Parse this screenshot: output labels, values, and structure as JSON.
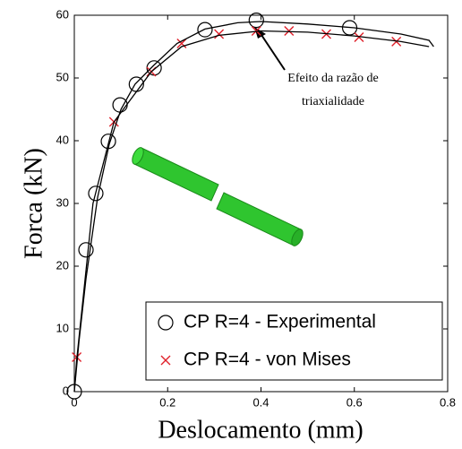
{
  "chart_data": {
    "type": "line",
    "xlabel": "Deslocamento (mm)",
    "ylabel": "Forca (kN)",
    "xlim": [
      0,
      0.8
    ],
    "ylim": [
      0,
      60
    ],
    "xticks": [
      0,
      0.2,
      0.4,
      0.6,
      0.8
    ],
    "yticks": [
      0,
      10,
      20,
      30,
      40,
      50,
      60
    ],
    "legend": "lower-right",
    "annotations": [
      "Efeito da razão de",
      "triaxialidade"
    ],
    "series": [
      {
        "name": "CP R=4 - Experimental",
        "color": "#000000",
        "marker": "circle",
        "x": [
          0,
          0.025,
          0.046,
          0.073,
          0.098,
          0.133,
          0.171,
          0.28,
          0.39,
          0.59
        ],
        "values": [
          0,
          22.6,
          31.6,
          39.9,
          45.7,
          49,
          51.6,
          57.7,
          59.2,
          58
        ]
      },
      {
        "name": "CP R=4 - von Mises",
        "color": "#e0202a",
        "marker": "x",
        "x": [
          0.005,
          0.085,
          0.165,
          0.23,
          0.31,
          0.39,
          0.46,
          0.54,
          0.61,
          0.69
        ],
        "values": [
          5.5,
          43,
          51,
          55.5,
          57,
          57.5,
          57.5,
          57,
          56.5,
          55.8
        ]
      },
      {
        "color": "#000000",
        "marker": "none",
        "x": [
          0,
          0.01,
          0.025,
          0.05,
          0.075,
          0.1,
          0.13,
          0.17,
          0.22,
          0.28,
          0.35,
          0.4,
          0.5,
          0.6,
          0.7,
          0.76,
          0.77
        ],
        "values": [
          0,
          8,
          18,
          31,
          39.5,
          45,
          49,
          52,
          55.5,
          57.8,
          58.8,
          59,
          58.6,
          58,
          57,
          56,
          55
        ]
      },
      {
        "color": "#000000",
        "marker": "none",
        "x": [
          0,
          0.005,
          0.04,
          0.085,
          0.165,
          0.23,
          0.31,
          0.4,
          0.5,
          0.6,
          0.7,
          0.76
        ],
        "values": [
          0,
          5,
          30,
          43,
          51,
          55,
          56.8,
          57.5,
          57.3,
          56.7,
          55.8,
          55
        ]
      }
    ]
  }
}
